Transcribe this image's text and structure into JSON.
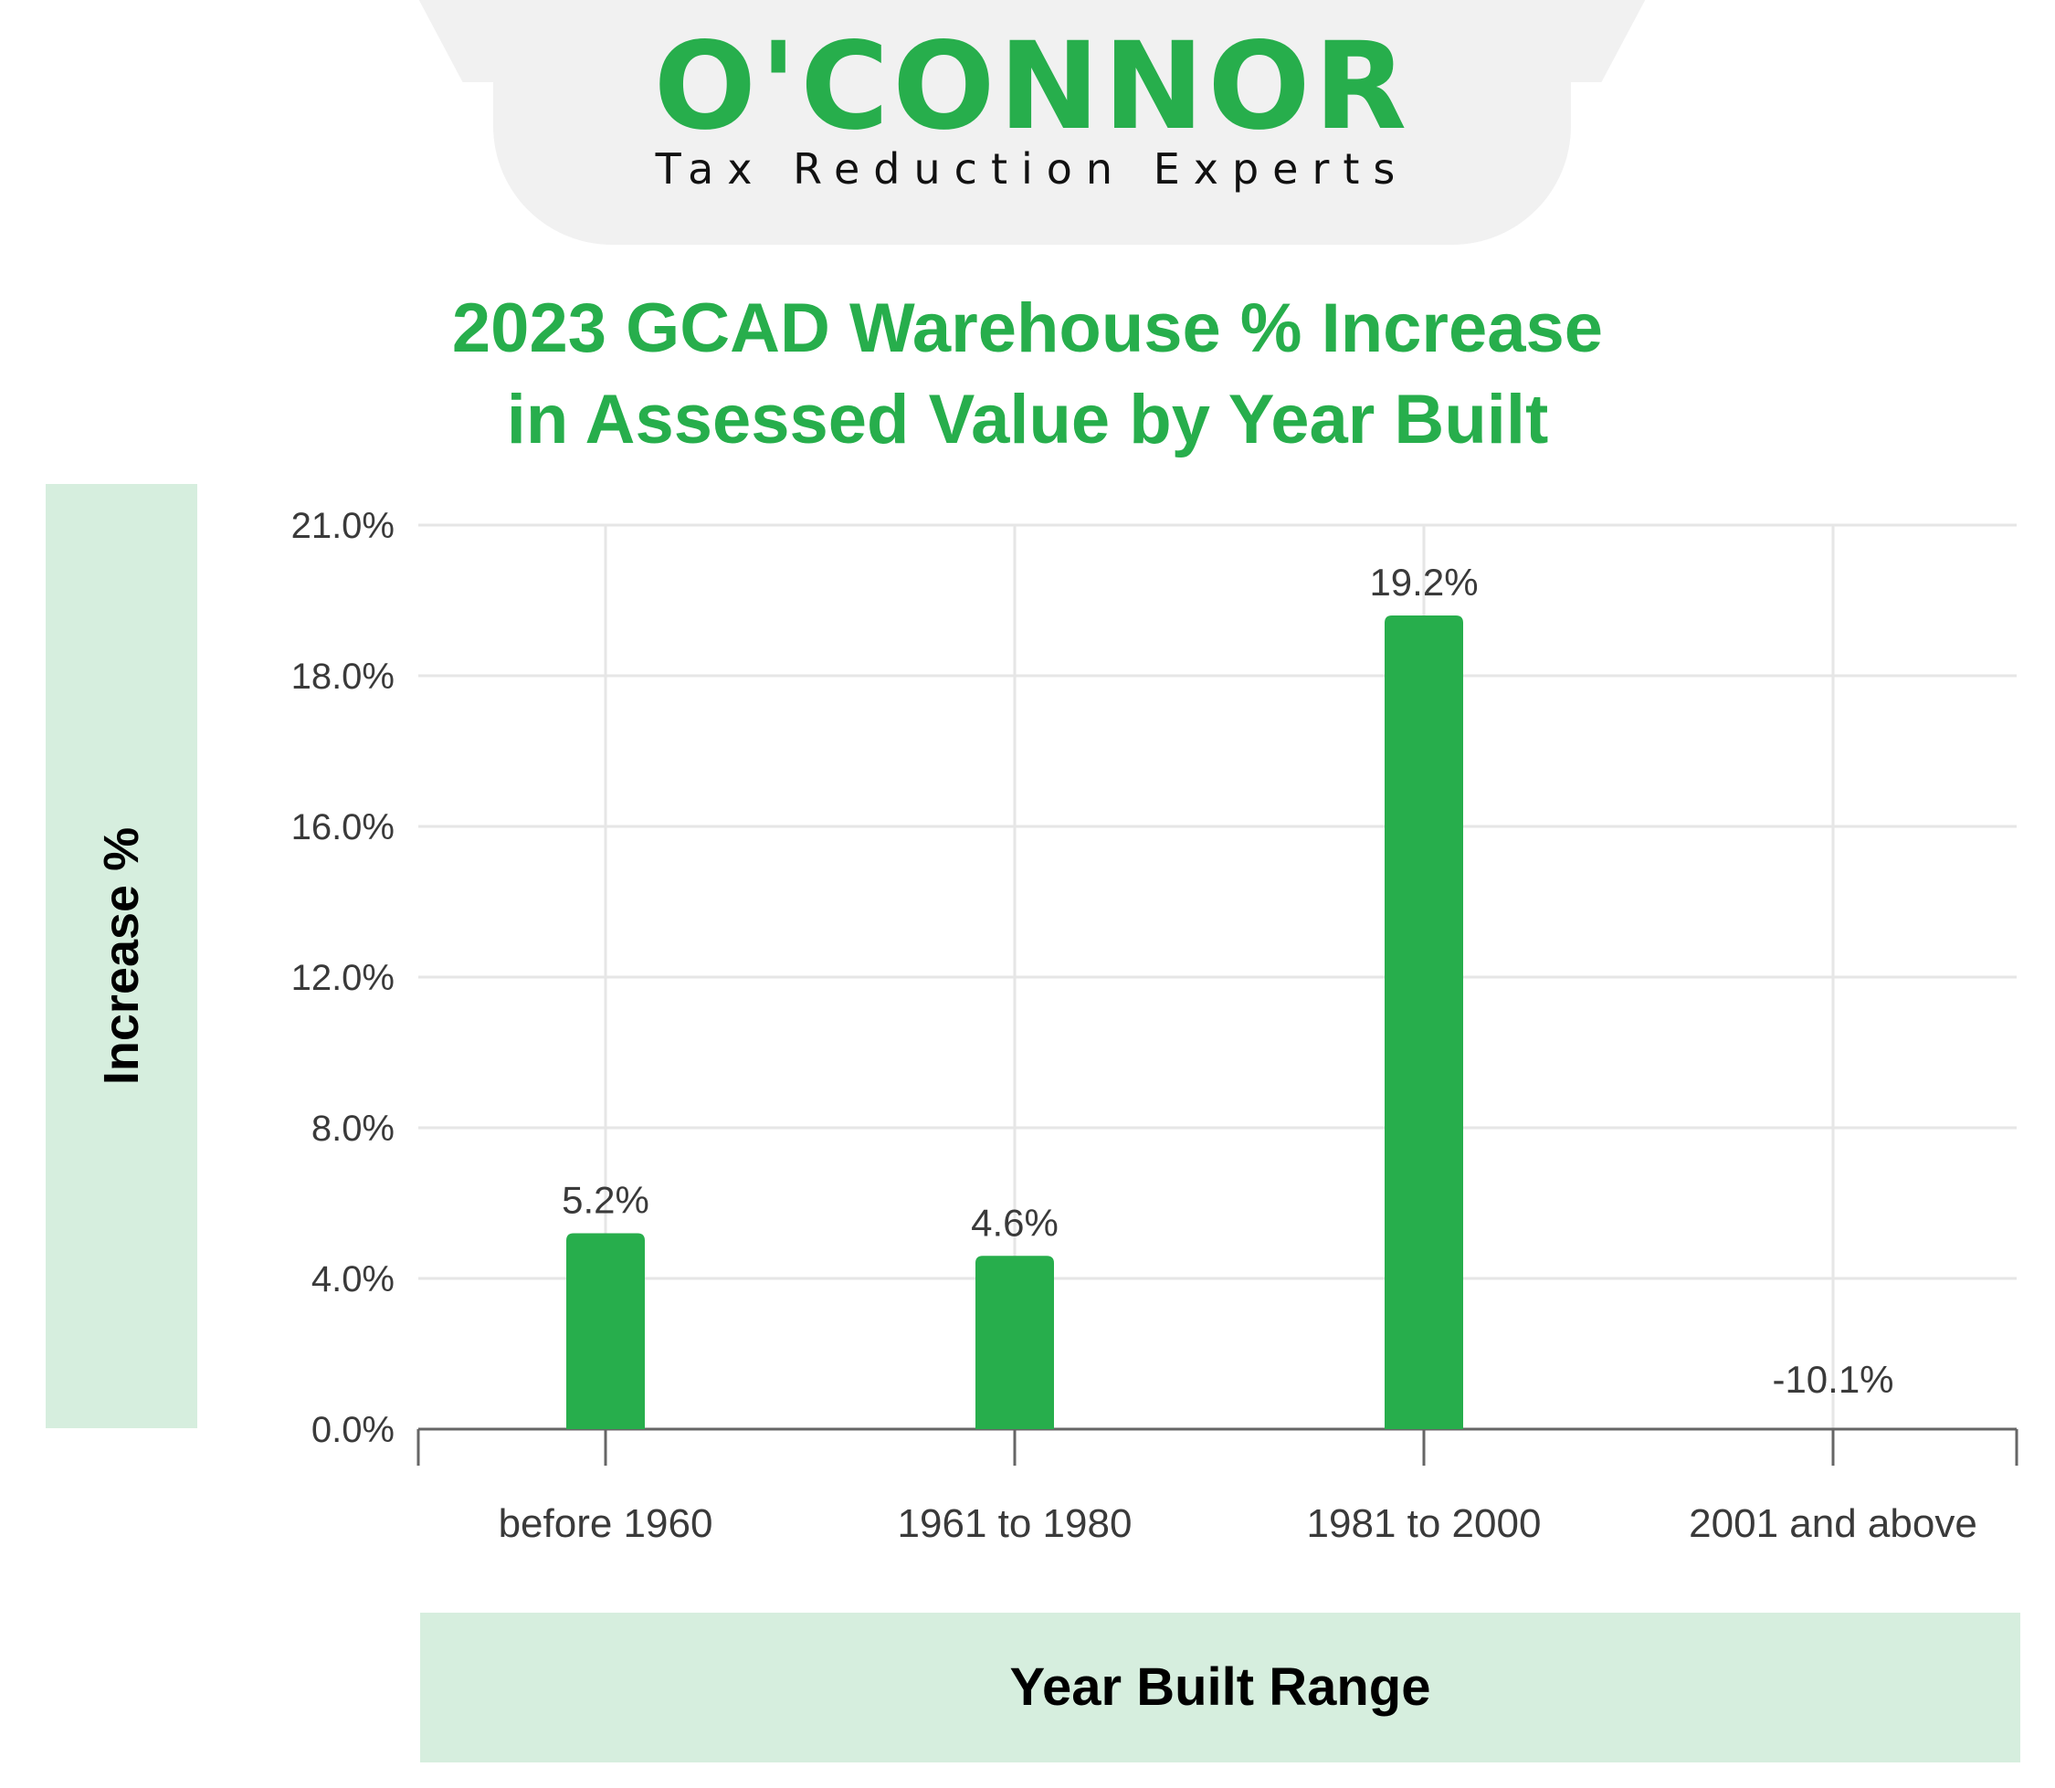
{
  "brand": {
    "name": "O'CONNOR",
    "tagline": "Tax Reduction Experts"
  },
  "colors": {
    "accent": "#27ae4c",
    "label_panel": "#d6eede",
    "gridline": "#e6e6e6",
    "axis": "#666666"
  },
  "chart_data": {
    "type": "bar",
    "title_line1": "2023 GCAD Warehouse % Increase",
    "title_line2": "in Assessed Value by Year Built",
    "xlabel": "Year Built Range",
    "ylabel": "Increase %",
    "categories": [
      "before 1960",
      "1961 to 1980",
      "1981 to 2000",
      "2001 and above"
    ],
    "values": [
      5.2,
      4.6,
      19.2,
      -10.1
    ],
    "data_labels": [
      "5.2%",
      "4.6%",
      "19.2%",
      "-10.1%"
    ],
    "y_ticks": [
      0,
      4,
      8,
      12,
      16,
      18,
      21
    ],
    "y_tick_labels": [
      "0.0%",
      "4.0%",
      "8.0%",
      "12.0%",
      "16.0%",
      "18.0%",
      "21.0%"
    ],
    "ylim": [
      0,
      21
    ],
    "grid": true,
    "legend": "none"
  }
}
